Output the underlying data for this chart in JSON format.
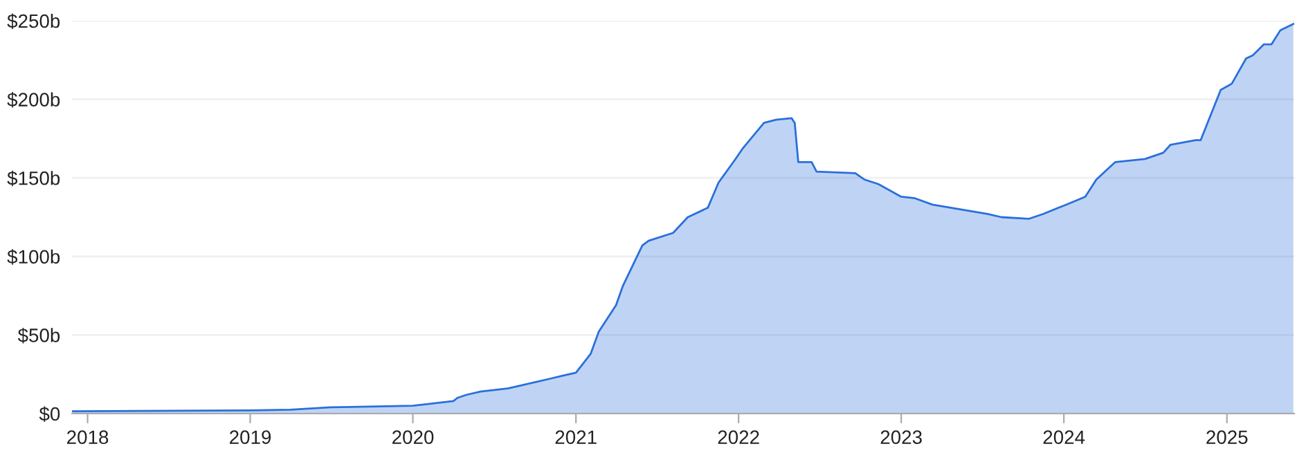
{
  "chart_data": {
    "type": "area",
    "x": [
      "2017-11-28",
      "2019-01-01",
      "2019-04-01",
      "2019-07-01",
      "2020-01-01",
      "2020-02-01",
      "2020-04-01",
      "2020-04-10",
      "2020-05-01",
      "2020-06-01",
      "2020-08-01",
      "2020-09-01",
      "2020-10-01",
      "2020-11-01",
      "2020-12-01",
      "2021-01-01",
      "2021-02-03",
      "2021-02-21",
      "2021-04-01",
      "2021-04-16",
      "2021-05-08",
      "2021-05-30",
      "2021-06-13",
      "2021-08-07",
      "2021-09-09",
      "2021-10-24",
      "2021-11-17",
      "2021-12-25",
      "2022-01-11",
      "2022-02-27",
      "2022-03-26",
      "2022-04-30",
      "2022-05-07",
      "2022-05-15",
      "2022-06-14",
      "2022-06-25",
      "2022-09-20",
      "2022-10-10",
      "2022-11-11",
      "2023-01-01",
      "2023-02-01",
      "2023-03-12",
      "2023-05-13",
      "2023-07-14",
      "2023-08-14",
      "2023-10-15",
      "2023-11-15",
      "2024-01-07",
      "2024-02-18",
      "2024-03-14",
      "2024-04-25",
      "2024-07-01",
      "2024-08-11",
      "2024-08-27",
      "2024-10-23",
      "2024-11-03",
      "2024-12-18",
      "2025-01-12",
      "2025-02-13",
      "2025-02-28",
      "2025-03-25",
      "2025-04-11",
      "2025-05-01",
      "2025-05-30"
    ],
    "series": [
      {
        "color": "#2a6fdb",
        "values": [
          1.5,
          2,
          2.5,
          4,
          5,
          6,
          8,
          10,
          12,
          14,
          16,
          18,
          20,
          22,
          24,
          26,
          38,
          52,
          69,
          81,
          94,
          107,
          110,
          115,
          125,
          131,
          147,
          162,
          169,
          185,
          187,
          188,
          185,
          160,
          160,
          154,
          153,
          149,
          146,
          138,
          137,
          133,
          130,
          127,
          125,
          124,
          127,
          133,
          138,
          149,
          160,
          162,
          166,
          171,
          174,
          174,
          206,
          210,
          226,
          228,
          235,
          235,
          244,
          248
        ]
      }
    ],
    "xlim": [
      "2017-11-27",
      "2025-06-01"
    ],
    "xticks": [
      {
        "value": "2018-01-01",
        "label": "2018"
      },
      {
        "value": "2019-01-01",
        "label": "2019"
      },
      {
        "value": "2020-01-01",
        "label": "2020"
      },
      {
        "value": "2021-01-01",
        "label": "2021"
      },
      {
        "value": "2022-01-01",
        "label": "2022"
      },
      {
        "value": "2023-01-01",
        "label": "2023"
      },
      {
        "value": "2024-01-01",
        "label": "2024"
      },
      {
        "value": "2025-01-01",
        "label": "2025"
      }
    ],
    "ylim": [
      0,
      250
    ],
    "yticks": [
      {
        "value": 0,
        "label": "$0"
      },
      {
        "value": 50,
        "label": "$50b"
      },
      {
        "value": 100,
        "label": "$100b"
      },
      {
        "value": 150,
        "label": "$150b"
      },
      {
        "value": 200,
        "label": "$200b"
      },
      {
        "value": 250,
        "label": "$250b"
      }
    ],
    "grid": "y",
    "legend": false
  }
}
